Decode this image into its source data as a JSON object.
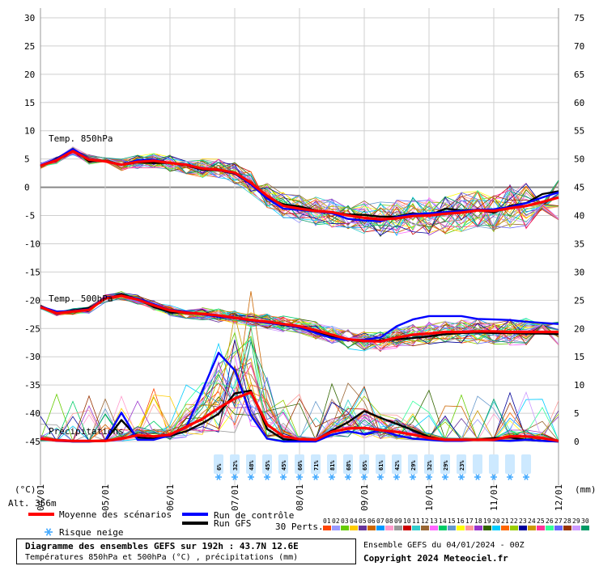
{
  "chart_data": {
    "type": "line",
    "title": "Diagramme des ensembles GEFS sur 192h : 43.7N 12.6E",
    "subtitle": "Températures 850hPa et 500hPa (°C) , précipitations (mm)",
    "run_label": "Ensemble GEFS du 04/01/2024 - 00Z",
    "copyright": "Copyright 2024 Meteociel.fr",
    "left_axis": {
      "unit": "(°C)",
      "ticks": [
        30,
        25,
        20,
        15,
        10,
        5,
        0,
        -5,
        -10,
        -15,
        -20,
        -25,
        -30,
        -35,
        -40,
        -45
      ],
      "range": [
        -45,
        30
      ]
    },
    "right_axis": {
      "unit": "(mm)",
      "ticks": [
        75,
        70,
        65,
        60,
        55,
        50,
        45,
        40,
        35,
        30,
        25,
        20,
        15,
        10,
        5,
        0
      ],
      "range": [
        0,
        75
      ]
    },
    "x_axis": {
      "labels": [
        "04/01",
        "05/01",
        "06/01",
        "07/01",
        "08/01",
        "09/01",
        "10/01",
        "11/01",
        "12/01"
      ],
      "range_hours": [
        0,
        192
      ]
    },
    "altitude": "Alt. 356m",
    "section_labels": {
      "t850": "Temp. 850hPa",
      "t500": "Temp. 500hPa",
      "precip": "Précipitations"
    },
    "legend": {
      "mean": {
        "label": "Moyenne des scénarios",
        "color": "#ff0000"
      },
      "control": {
        "label": "Run de contrôle",
        "color": "#0000ff"
      },
      "gfs": {
        "label": "Run GFS",
        "color": "#000000"
      },
      "snow": {
        "label": "Risque neige",
        "color": "#44aaff"
      },
      "perts_label": "30 Perts.",
      "perts": [
        "01",
        "02",
        "03",
        "04",
        "05",
        "06",
        "07",
        "08",
        "09",
        "10",
        "11",
        "12",
        "13",
        "14",
        "15",
        "16",
        "17",
        "18",
        "19",
        "20",
        "21",
        "22",
        "23",
        "24",
        "25",
        "26",
        "27",
        "28",
        "29",
        "30"
      ],
      "pert_colors": [
        "#ff4400",
        "#9999ff",
        "#66cc00",
        "#ffcc00",
        "#663399",
        "#cc6600",
        "#0099ff",
        "#ff99cc",
        "#999999",
        "#cc0000",
        "#33cccc",
        "#996633",
        "#ff66ff",
        "#00cc66",
        "#6699cc",
        "#ffff00",
        "#ff9999",
        "#9933cc",
        "#336600",
        "#00ccff",
        "#ff6600",
        "#99cc00",
        "#000099",
        "#cc9900",
        "#ff3399",
        "#33ff99",
        "#6666ff",
        "#993300",
        "#cc99ff",
        "#009966"
      ]
    },
    "snow_risk": {
      "hours": [
        66,
        72,
        78,
        84,
        90,
        96,
        102,
        108,
        114,
        120,
        126,
        132,
        138,
        144,
        150,
        156,
        162,
        168,
        174,
        180
      ],
      "percent": [
        "6%",
        "32%",
        "48%",
        "45%",
        "45%",
        "66%",
        "71%",
        "81%",
        "68%",
        "65%",
        "61%",
        "42%",
        "29%",
        "32%",
        "29%",
        "23%",
        "",
        "",
        "",
        ""
      ]
    },
    "series": [
      {
        "name": "Moyenne des scénarios",
        "level": "850hPa",
        "color": "#ff0000",
        "x": [
          0,
          6,
          12,
          18,
          24,
          30,
          36,
          42,
          48,
          54,
          60,
          66,
          72,
          78,
          84,
          90,
          96,
          102,
          108,
          114,
          120,
          126,
          132,
          138,
          144,
          150,
          156,
          162,
          168,
          174,
          180,
          186,
          192
        ],
        "y": [
          3.8,
          4.8,
          6.4,
          4.9,
          4.6,
          4.0,
          4.5,
          4.7,
          4.3,
          4.0,
          3.3,
          3.1,
          2.6,
          0.8,
          -1.5,
          -3.3,
          -3.8,
          -4.2,
          -4.4,
          -5.0,
          -5.4,
          -5.7,
          -5.5,
          -5.1,
          -5.0,
          -4.7,
          -4.5,
          -4.1,
          -4.2,
          -3.7,
          -3.3,
          -2.6,
          -1.8
        ]
      },
      {
        "name": "Run de contrôle",
        "level": "850hPa",
        "color": "#0000ff",
        "x": [
          0,
          6,
          12,
          18,
          24,
          30,
          36,
          42,
          48,
          54,
          60,
          66,
          72,
          78,
          84,
          90,
          96,
          102,
          108,
          114,
          120,
          126,
          132,
          138,
          144,
          150,
          156,
          162,
          168,
          174,
          180,
          186,
          192
        ],
        "y": [
          3.9,
          5.0,
          6.8,
          5.0,
          4.6,
          4.0,
          4.8,
          4.9,
          4.3,
          4.1,
          3.3,
          3.0,
          2.5,
          0.5,
          -2.0,
          -3.8,
          -4.0,
          -4.3,
          -4.6,
          -5.6,
          -5.9,
          -6.0,
          -5.3,
          -4.8,
          -4.6,
          -4.4,
          -4.2,
          -4.0,
          -3.9,
          -3.5,
          -2.8,
          -1.8,
          -0.9
        ]
      },
      {
        "name": "Run GFS",
        "level": "850hPa",
        "color": "#000000",
        "x": [
          0,
          6,
          12,
          18,
          24,
          30,
          36,
          42,
          48,
          54,
          60,
          66,
          72,
          78,
          84,
          90,
          96,
          102,
          108,
          114,
          120,
          126,
          132,
          138,
          144,
          150,
          156,
          162,
          168,
          174,
          180,
          186,
          192
        ],
        "y": [
          3.7,
          5.1,
          6.7,
          4.6,
          4.7,
          4.0,
          4.4,
          4.3,
          4.3,
          3.9,
          3.1,
          3.0,
          2.4,
          0.5,
          -1.9,
          -3.0,
          -3.4,
          -4.1,
          -4.5,
          -4.8,
          -4.9,
          -5.2,
          -5.2,
          -4.6,
          -5.0,
          -3.8,
          -4.1,
          -4.0,
          -4.5,
          -3.3,
          -2.8,
          -1.2,
          -0.7
        ]
      },
      {
        "name": "Moyenne des scénarios",
        "level": "500hPa",
        "color": "#ff0000",
        "x": [
          0,
          6,
          12,
          18,
          24,
          30,
          36,
          42,
          48,
          54,
          60,
          66,
          72,
          78,
          84,
          90,
          96,
          102,
          108,
          114,
          120,
          126,
          132,
          138,
          144,
          150,
          156,
          162,
          168,
          174,
          180,
          186,
          192
        ],
        "y": [
          -21.2,
          -22.3,
          -22.0,
          -21.7,
          -19.7,
          -19.2,
          -19.9,
          -20.9,
          -21.8,
          -22.2,
          -22.4,
          -22.7,
          -23.1,
          -23.5,
          -23.8,
          -24.2,
          -24.6,
          -25.3,
          -26.1,
          -26.9,
          -27.2,
          -27.3,
          -26.6,
          -26.1,
          -25.9,
          -25.6,
          -25.6,
          -25.5,
          -25.5,
          -25.6,
          -25.6,
          -25.6,
          -25.6
        ]
      },
      {
        "name": "Run de contrôle",
        "level": "500hPa",
        "color": "#0000ff",
        "x": [
          0,
          6,
          12,
          18,
          24,
          30,
          36,
          42,
          48,
          54,
          60,
          66,
          72,
          78,
          84,
          90,
          96,
          102,
          108,
          114,
          120,
          126,
          132,
          138,
          144,
          150,
          156,
          162,
          168,
          174,
          180,
          186,
          192
        ],
        "y": [
          -21.1,
          -22.0,
          -21.9,
          -21.6,
          -19.5,
          -19.2,
          -19.7,
          -20.7,
          -21.7,
          -22.0,
          -22.5,
          -22.9,
          -23.2,
          -23.6,
          -24.0,
          -24.3,
          -24.8,
          -25.8,
          -26.7,
          -27.1,
          -27.0,
          -26.6,
          -24.6,
          -23.4,
          -22.8,
          -22.8,
          -22.8,
          -23.3,
          -23.4,
          -23.5,
          -23.8,
          -24.0,
          -24.2
        ]
      },
      {
        "name": "Run GFS",
        "level": "500hPa",
        "color": "#000000",
        "x": [
          0,
          6,
          12,
          18,
          24,
          30,
          36,
          42,
          48,
          54,
          60,
          66,
          72,
          78,
          84,
          90,
          96,
          102,
          108,
          114,
          120,
          126,
          132,
          138,
          144,
          150,
          156,
          162,
          168,
          174,
          180,
          186,
          192
        ],
        "y": [
          -21.0,
          -22.2,
          -21.8,
          -21.4,
          -19.8,
          -18.9,
          -19.8,
          -21.2,
          -22.1,
          -22.2,
          -22.5,
          -22.8,
          -23.2,
          -23.5,
          -23.9,
          -24.4,
          -24.8,
          -25.6,
          -26.5,
          -27.0,
          -27.3,
          -27.1,
          -26.9,
          -26.7,
          -26.4,
          -26.0,
          -25.8,
          -25.7,
          -25.8,
          -25.8,
          -25.9,
          -25.9,
          -26.0
        ]
      },
      {
        "name": "Moyenne des scénarios",
        "level": "precip",
        "color": "#ff0000",
        "x": [
          0,
          6,
          12,
          18,
          24,
          30,
          36,
          42,
          48,
          54,
          60,
          66,
          72,
          78,
          84,
          90,
          96,
          102,
          108,
          114,
          120,
          126,
          132,
          138,
          144,
          150,
          156,
          162,
          168,
          174,
          180,
          186,
          192
        ],
        "y": [
          0.5,
          0.2,
          0.1,
          0.1,
          0.1,
          0.5,
          1.1,
          0.9,
          1.2,
          2.6,
          4.0,
          5.9,
          7.6,
          8.7,
          3.0,
          0.9,
          0.4,
          0.3,
          1.7,
          2.3,
          2.4,
          2.0,
          1.7,
          1.2,
          0.6,
          0.3,
          0.3,
          0.3,
          0.3,
          0.9,
          0.9,
          0.6,
          0.1
        ]
      },
      {
        "name": "Run de contrôle",
        "level": "precip",
        "color": "#0000ff",
        "x": [
          0,
          6,
          12,
          18,
          24,
          30,
          36,
          42,
          48,
          54,
          60,
          66,
          72,
          78,
          84,
          90,
          96,
          102,
          108,
          114,
          120,
          126,
          132,
          138,
          144,
          150,
          156,
          162,
          168,
          174,
          180,
          186,
          192
        ],
        "y": [
          0.6,
          0.1,
          0.0,
          0.0,
          0.2,
          5.1,
          0.3,
          0.3,
          1.1,
          2.5,
          9.0,
          15.7,
          12.6,
          4.6,
          0.5,
          0.0,
          0.0,
          0.0,
          1.2,
          1.8,
          1.3,
          2.0,
          1.1,
          0.5,
          0.3,
          0.1,
          0.1,
          0.3,
          0.2,
          0.1,
          0.3,
          0.1,
          0.0
        ]
      },
      {
        "name": "Run GFS",
        "level": "precip",
        "color": "#000000",
        "x": [
          0,
          6,
          12,
          18,
          24,
          30,
          36,
          42,
          48,
          54,
          60,
          66,
          72,
          78,
          84,
          90,
          96,
          102,
          108,
          114,
          120,
          126,
          132,
          138,
          144,
          150,
          156,
          162,
          168,
          174,
          180,
          186,
          192
        ],
        "y": [
          0.5,
          0.2,
          0.0,
          0.0,
          0.1,
          3.8,
          0.7,
          0.5,
          1.0,
          1.8,
          3.2,
          4.9,
          8.5,
          9.0,
          2.2,
          0.4,
          0.1,
          0.3,
          1.9,
          3.4,
          5.4,
          4.2,
          3.1,
          2.0,
          0.8,
          0.3,
          0.2,
          0.3,
          0.6,
          0.7,
          0.3,
          0.1,
          0.0
        ]
      }
    ]
  }
}
